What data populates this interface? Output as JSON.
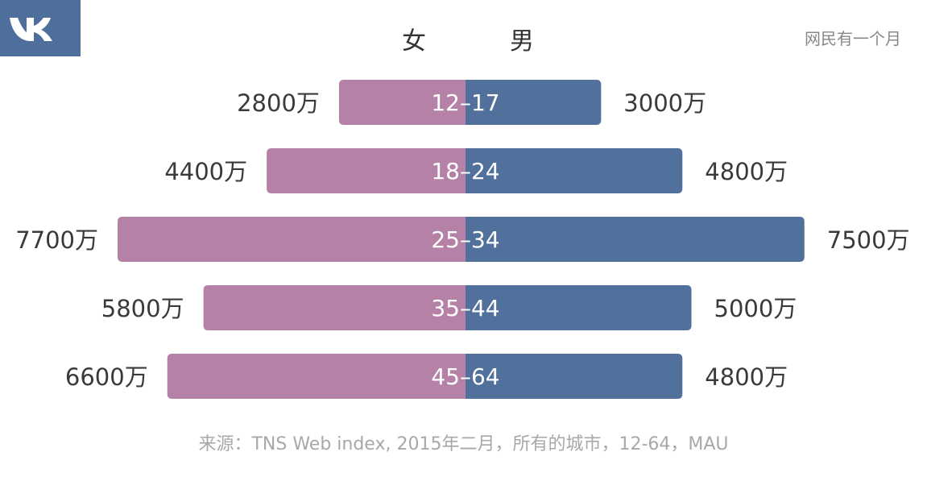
{
  "header": {
    "female_label": "女",
    "male_label": "男",
    "subtitle": "网民有一个月"
  },
  "colors": {
    "female": "#B581A7",
    "male": "#51719C",
    "logo_bg": "#4E6F9B"
  },
  "logo": {
    "icon": "vk-logo-icon"
  },
  "chart_data": {
    "type": "bar",
    "orientation": "horizontal-diverging",
    "categories": [
      "12–17",
      "18–24",
      "25–34",
      "35–44",
      "45–64"
    ],
    "series": [
      {
        "name": "女",
        "values": [
          2800,
          4400,
          7700,
          5800,
          6600
        ],
        "labels": [
          "2800万",
          "4400万",
          "7700万",
          "5800万",
          "6600万"
        ]
      },
      {
        "name": "男",
        "values": [
          3000,
          4800,
          7500,
          5000,
          4800
        ],
        "labels": [
          "3000万",
          "4800万",
          "7500万",
          "5000万",
          "4800万"
        ]
      }
    ],
    "unit": "万",
    "source": "来源：TNS Web index, 2015年二月，所有的城市，12-64，MAU"
  }
}
